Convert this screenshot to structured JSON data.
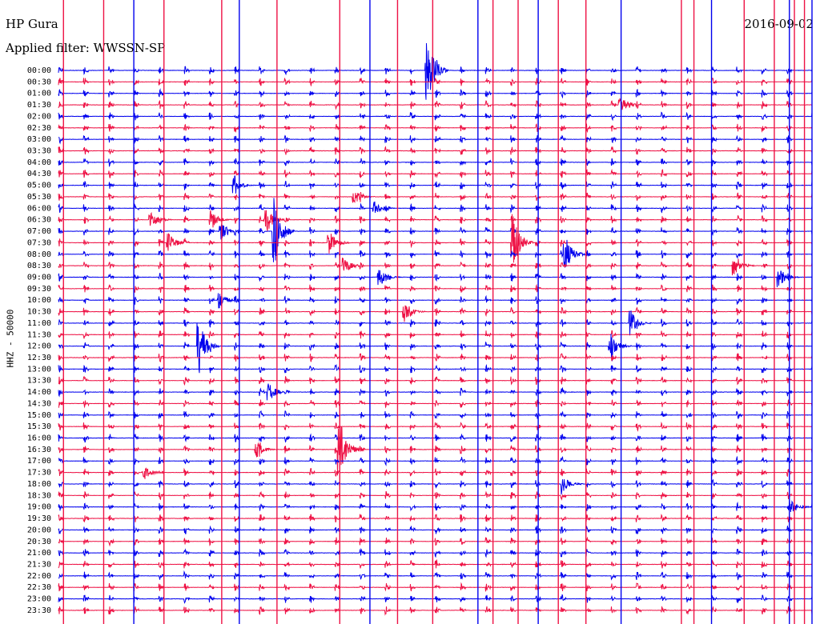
{
  "chart_data": {
    "type": "line",
    "title": "HP Gura",
    "date": "2016-09-02",
    "subtitle": "Applied filter: WWSSN-SP",
    "ylabel": "HHZ - 50000",
    "rows": [
      "00:00",
      "00:30",
      "01:00",
      "01:30",
      "02:00",
      "02:30",
      "03:00",
      "03:30",
      "04:00",
      "04:30",
      "05:00",
      "05:30",
      "06:00",
      "06:30",
      "07:00",
      "07:30",
      "08:00",
      "08:30",
      "09:00",
      "09:30",
      "10:00",
      "10:30",
      "11:00",
      "11:30",
      "12:00",
      "12:30",
      "13:00",
      "13:30",
      "14:00",
      "14:30",
      "15:00",
      "15:30",
      "16:00",
      "16:30",
      "17:00",
      "17:30",
      "18:00",
      "18:30",
      "19:00",
      "19:30",
      "20:00",
      "20:30",
      "21:00",
      "21:30",
      "22:00",
      "22:30",
      "23:00",
      "23:30"
    ],
    "row_colors": [
      "#0000ee",
      "#ee1144"
    ],
    "grid": false,
    "x_minutes_per_row": 30,
    "periodic_pulse_interval_minutes": 1,
    "clipped_traces_minutes": [
      0.2,
      1.8,
      3.0,
      4.2,
      6.5,
      7.2,
      8.7,
      11.2,
      12.4,
      13.5,
      14.9,
      16.7,
      17.3,
      18.3,
      19.1,
      19.9,
      21.0,
      22.4,
      24.8,
      25.3,
      26.0,
      27.3,
      28.5,
      29.1,
      29.3,
      29.7,
      30.0
    ],
    "events": [
      {
        "row": 0,
        "minute": 14.7,
        "amp": 3.0
      },
      {
        "row": 3,
        "minute": 22.4,
        "amp": 0.9
      },
      {
        "row": 10,
        "minute": 7.0,
        "amp": 0.7
      },
      {
        "row": 11,
        "minute": 11.8,
        "amp": 0.6
      },
      {
        "row": 12,
        "minute": 12.6,
        "amp": 0.6
      },
      {
        "row": 13,
        "minute": 3.7,
        "amp": 0.8
      },
      {
        "row": 13,
        "minute": 6.1,
        "amp": 0.8
      },
      {
        "row": 13,
        "minute": 8.3,
        "amp": 1.1
      },
      {
        "row": 14,
        "minute": 6.5,
        "amp": 0.8
      },
      {
        "row": 14,
        "minute": 8.6,
        "amp": 3.0
      },
      {
        "row": 15,
        "minute": 4.4,
        "amp": 0.9
      },
      {
        "row": 15,
        "minute": 10.8,
        "amp": 1.0
      },
      {
        "row": 15,
        "minute": 18.1,
        "amp": 2.4
      },
      {
        "row": 16,
        "minute": 20.2,
        "amp": 1.5
      },
      {
        "row": 17,
        "minute": 11.4,
        "amp": 0.7
      },
      {
        "row": 17,
        "minute": 26.9,
        "amp": 0.9
      },
      {
        "row": 18,
        "minute": 12.8,
        "amp": 0.8
      },
      {
        "row": 18,
        "minute": 28.7,
        "amp": 0.9
      },
      {
        "row": 20,
        "minute": 6.4,
        "amp": 0.8
      },
      {
        "row": 21,
        "minute": 13.8,
        "amp": 0.9
      },
      {
        "row": 22,
        "minute": 22.8,
        "amp": 1.1
      },
      {
        "row": 24,
        "minute": 5.6,
        "amp": 2.5
      },
      {
        "row": 24,
        "minute": 22.0,
        "amp": 1.2
      },
      {
        "row": 28,
        "minute": 8.4,
        "amp": 0.8
      },
      {
        "row": 33,
        "minute": 11.2,
        "amp": 2.8
      },
      {
        "row": 33,
        "minute": 7.9,
        "amp": 0.7
      },
      {
        "row": 35,
        "minute": 3.4,
        "amp": 0.7
      },
      {
        "row": 36,
        "minute": 20.1,
        "amp": 0.7
      },
      {
        "row": 38,
        "minute": 29.2,
        "amp": 0.6
      }
    ]
  }
}
